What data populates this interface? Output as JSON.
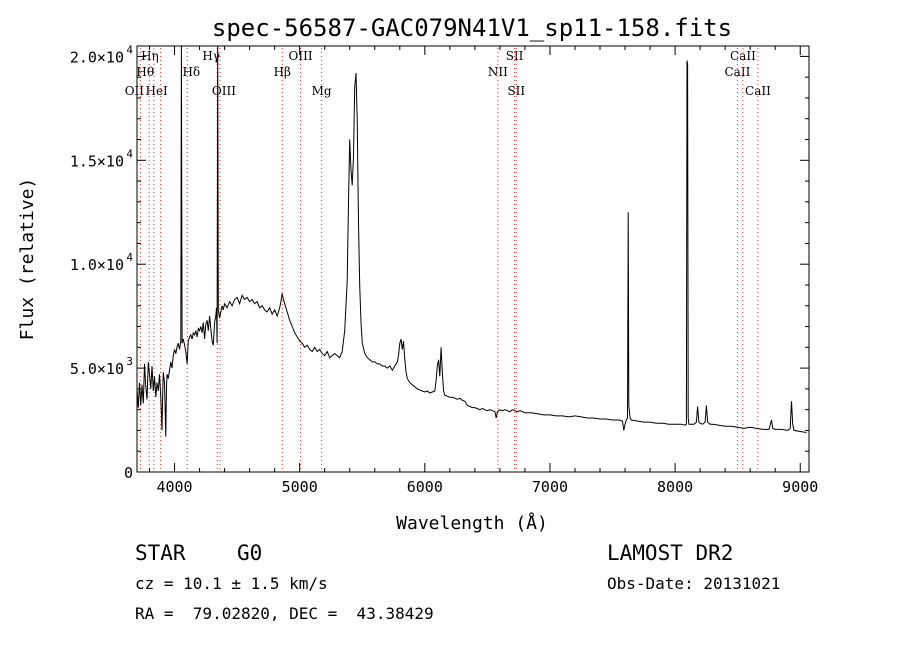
{
  "chart_data": {
    "type": "line",
    "title": "spec-56587-GAC079N41V1_sp11-158.fits",
    "xlabel": "Wavelength (Å)",
    "ylabel": "Flux (relative)",
    "xlim": [
      3700,
      9070
    ],
    "ylim": [
      0,
      20500
    ],
    "xticks": [
      4000,
      5000,
      6000,
      7000,
      8000,
      9000
    ],
    "yticks": [
      {
        "value": 0,
        "mant": "0",
        "exp": ""
      },
      {
        "value": 5000,
        "mant": "5.0×10",
        "exp": "3"
      },
      {
        "value": 10000,
        "mant": "1.0×10",
        "exp": "4"
      },
      {
        "value": 15000,
        "mant": "1.5×10",
        "exp": "4"
      },
      {
        "value": 20000,
        "mant": "2.0×10",
        "exp": "4"
      }
    ],
    "series": [
      {
        "points": [
          [
            3700,
            4000
          ],
          [
            3710,
            3100
          ],
          [
            3720,
            4300
          ],
          [
            3730,
            3200
          ],
          [
            3740,
            4200
          ],
          [
            3750,
            3300
          ],
          [
            3760,
            5200
          ],
          [
            3770,
            4100
          ],
          [
            3780,
            3500
          ],
          [
            3790,
            5300
          ],
          [
            3800,
            4700
          ],
          [
            3810,
            4000
          ],
          [
            3820,
            5100
          ],
          [
            3830,
            3900
          ],
          [
            3840,
            4600
          ],
          [
            3850,
            3600
          ],
          [
            3860,
            4300
          ],
          [
            3870,
            3900
          ],
          [
            3880,
            4700
          ],
          [
            3890,
            3600
          ],
          [
            3900,
            2000
          ],
          [
            3905,
            3800
          ],
          [
            3910,
            4800
          ],
          [
            3920,
            4300
          ],
          [
            3930,
            1700
          ],
          [
            3935,
            3900
          ],
          [
            3940,
            4700
          ],
          [
            3950,
            4500
          ],
          [
            3960,
            4900
          ],
          [
            3970,
            5300
          ],
          [
            3980,
            5000
          ],
          [
            3990,
            5600
          ],
          [
            4000,
            5900
          ],
          [
            4010,
            5700
          ],
          [
            4020,
            6000
          ],
          [
            4030,
            6200
          ],
          [
            4040,
            5900
          ],
          [
            4050,
            6300
          ],
          [
            4055,
            20500
          ],
          [
            4060,
            6200
          ],
          [
            4070,
            6400
          ],
          [
            4080,
            6100
          ],
          [
            4090,
            5800
          ],
          [
            4100,
            5200
          ],
          [
            4110,
            6300
          ],
          [
            4120,
            6500
          ],
          [
            4130,
            6600
          ],
          [
            4140,
            6400
          ],
          [
            4150,
            6700
          ],
          [
            4160,
            6600
          ],
          [
            4170,
            6800
          ],
          [
            4180,
            6500
          ],
          [
            4190,
            6900
          ],
          [
            4200,
            6800
          ],
          [
            4210,
            7000
          ],
          [
            4220,
            6700
          ],
          [
            4230,
            7200
          ],
          [
            4240,
            6400
          ],
          [
            4250,
            7100
          ],
          [
            4260,
            7300
          ],
          [
            4270,
            6800
          ],
          [
            4280,
            7500
          ],
          [
            4290,
            6900
          ],
          [
            4300,
            6300
          ],
          [
            4310,
            6100
          ],
          [
            4320,
            7200
          ],
          [
            4330,
            7500
          ],
          [
            4335,
            7900
          ],
          [
            4340,
            6200
          ],
          [
            4345,
            20500
          ],
          [
            4350,
            7800
          ],
          [
            4360,
            7400
          ],
          [
            4370,
            7700
          ],
          [
            4380,
            8000
          ],
          [
            4390,
            7800
          ],
          [
            4400,
            8100
          ],
          [
            4420,
            7900
          ],
          [
            4440,
            8200
          ],
          [
            4460,
            8000
          ],
          [
            4480,
            8300
          ],
          [
            4500,
            8400
          ],
          [
            4520,
            8100
          ],
          [
            4540,
            8500
          ],
          [
            4560,
            8300
          ],
          [
            4580,
            8400
          ],
          [
            4600,
            8200
          ],
          [
            4620,
            8300
          ],
          [
            4640,
            8100
          ],
          [
            4660,
            8200
          ],
          [
            4680,
            7900
          ],
          [
            4700,
            8000
          ],
          [
            4720,
            7800
          ],
          [
            4740,
            7700
          ],
          [
            4760,
            7900
          ],
          [
            4780,
            7600
          ],
          [
            4800,
            7800
          ],
          [
            4820,
            7500
          ],
          [
            4840,
            7900
          ],
          [
            4850,
            8200
          ],
          [
            4860,
            8600
          ],
          [
            4870,
            8300
          ],
          [
            4880,
            8100
          ],
          [
            4900,
            7700
          ],
          [
            4920,
            7300
          ],
          [
            4940,
            7000
          ],
          [
            4960,
            6700
          ],
          [
            4980,
            6500
          ],
          [
            5000,
            6300
          ],
          [
            5020,
            6200
          ],
          [
            5040,
            6000
          ],
          [
            5060,
            6100
          ],
          [
            5080,
            5900
          ],
          [
            5100,
            5800
          ],
          [
            5120,
            6000
          ],
          [
            5140,
            5800
          ],
          [
            5160,
            5900
          ],
          [
            5180,
            5700
          ],
          [
            5200,
            5600
          ],
          [
            5220,
            5800
          ],
          [
            5240,
            5500
          ],
          [
            5260,
            5600
          ],
          [
            5280,
            5700
          ],
          [
            5300,
            5600
          ],
          [
            5320,
            5500
          ],
          [
            5340,
            5800
          ],
          [
            5360,
            6800
          ],
          [
            5380,
            9200
          ],
          [
            5390,
            13000
          ],
          [
            5400,
            16000
          ],
          [
            5410,
            14500
          ],
          [
            5420,
            13800
          ],
          [
            5430,
            15200
          ],
          [
            5440,
            18500
          ],
          [
            5450,
            19200
          ],
          [
            5460,
            17000
          ],
          [
            5470,
            12000
          ],
          [
            5480,
            9000
          ],
          [
            5490,
            7200
          ],
          [
            5500,
            6200
          ],
          [
            5520,
            5700
          ],
          [
            5540,
            5500
          ],
          [
            5560,
            5400
          ],
          [
            5580,
            5300
          ],
          [
            5600,
            5300
          ],
          [
            5620,
            5200
          ],
          [
            5640,
            5200
          ],
          [
            5660,
            5100
          ],
          [
            5680,
            5100
          ],
          [
            5700,
            5000
          ],
          [
            5720,
            5100
          ],
          [
            5740,
            4900
          ],
          [
            5760,
            5100
          ],
          [
            5780,
            5300
          ],
          [
            5790,
            5600
          ],
          [
            5800,
            6200
          ],
          [
            5810,
            6400
          ],
          [
            5820,
            5900
          ],
          [
            5830,
            6300
          ],
          [
            5840,
            5400
          ],
          [
            5850,
            4800
          ],
          [
            5860,
            4500
          ],
          [
            5870,
            4400
          ],
          [
            5880,
            4300
          ],
          [
            5900,
            4200
          ],
          [
            5920,
            4100
          ],
          [
            5940,
            4000
          ],
          [
            5960,
            3950
          ],
          [
            5980,
            3900
          ],
          [
            6000,
            3850
          ],
          [
            6020,
            3900
          ],
          [
            6040,
            3800
          ],
          [
            6060,
            3850
          ],
          [
            6080,
            3900
          ],
          [
            6090,
            4400
          ],
          [
            6100,
            5100
          ],
          [
            6110,
            5400
          ],
          [
            6120,
            4600
          ],
          [
            6130,
            6000
          ],
          [
            6140,
            4800
          ],
          [
            6150,
            3900
          ],
          [
            6160,
            3700
          ],
          [
            6180,
            3650
          ],
          [
            6200,
            3600
          ],
          [
            6220,
            3600
          ],
          [
            6240,
            3550
          ],
          [
            6260,
            3500
          ],
          [
            6280,
            3550
          ],
          [
            6300,
            3450
          ],
          [
            6320,
            3400
          ],
          [
            6340,
            3200
          ],
          [
            6360,
            3150
          ],
          [
            6380,
            3100
          ],
          [
            6400,
            3100
          ],
          [
            6420,
            3050
          ],
          [
            6440,
            3000
          ],
          [
            6460,
            3050
          ],
          [
            6480,
            3000
          ],
          [
            6500,
            2950
          ],
          [
            6520,
            3000
          ],
          [
            6540,
            2950
          ],
          [
            6560,
            2900
          ],
          [
            6570,
            2600
          ],
          [
            6580,
            2900
          ],
          [
            6600,
            3000
          ],
          [
            6620,
            2950
          ],
          [
            6640,
            3000
          ],
          [
            6660,
            2950
          ],
          [
            6680,
            2900
          ],
          [
            6700,
            3000
          ],
          [
            6720,
            2950
          ],
          [
            6740,
            2900
          ],
          [
            6760,
            2950
          ],
          [
            6780,
            2900
          ],
          [
            6800,
            2850
          ],
          [
            6850,
            2850
          ],
          [
            6900,
            2800
          ],
          [
            6950,
            2750
          ],
          [
            7000,
            2750
          ],
          [
            7050,
            2700
          ],
          [
            7100,
            2700
          ],
          [
            7150,
            2650
          ],
          [
            7200,
            2700
          ],
          [
            7250,
            2650
          ],
          [
            7300,
            2600
          ],
          [
            7350,
            2600
          ],
          [
            7400,
            2550
          ],
          [
            7450,
            2550
          ],
          [
            7500,
            2500
          ],
          [
            7550,
            2500
          ],
          [
            7580,
            2450
          ],
          [
            7590,
            2000
          ],
          [
            7600,
            2300
          ],
          [
            7610,
            2500
          ],
          [
            7620,
            2600
          ],
          [
            7625,
            12500
          ],
          [
            7630,
            3200
          ],
          [
            7640,
            2600
          ],
          [
            7650,
            2500
          ],
          [
            7700,
            2450
          ],
          [
            7750,
            2400
          ],
          [
            7800,
            2400
          ],
          [
            7850,
            2350
          ],
          [
            7900,
            2350
          ],
          [
            7950,
            2300
          ],
          [
            8000,
            2300
          ],
          [
            8050,
            2300
          ],
          [
            8080,
            2250
          ],
          [
            8090,
            2300
          ],
          [
            8095,
            19800
          ],
          [
            8100,
            19600
          ],
          [
            8105,
            2600
          ],
          [
            8110,
            2300
          ],
          [
            8150,
            2300
          ],
          [
            8170,
            2400
          ],
          [
            8180,
            3150
          ],
          [
            8190,
            2400
          ],
          [
            8200,
            2350
          ],
          [
            8220,
            2300
          ],
          [
            8240,
            2400
          ],
          [
            8250,
            3200
          ],
          [
            8260,
            2400
          ],
          [
            8280,
            2300
          ],
          [
            8300,
            2300
          ],
          [
            8350,
            2250
          ],
          [
            8400,
            2200
          ],
          [
            8450,
            2200
          ],
          [
            8500,
            2150
          ],
          [
            8550,
            2100
          ],
          [
            8600,
            2150
          ],
          [
            8650,
            2100
          ],
          [
            8700,
            2050
          ],
          [
            8750,
            2050
          ],
          [
            8770,
            2500
          ],
          [
            8780,
            2100
          ],
          [
            8800,
            2050
          ],
          [
            8850,
            2050
          ],
          [
            8900,
            2000
          ],
          [
            8920,
            2100
          ],
          [
            8930,
            3400
          ],
          [
            8940,
            2300
          ],
          [
            8950,
            2000
          ],
          [
            9000,
            1950
          ],
          [
            9050,
            1900
          ]
        ]
      }
    ],
    "lines": [
      {
        "label": "Hη",
        "x": 3835,
        "row": 0,
        "dx": -4
      },
      {
        "label": "Hθ",
        "x": 3798,
        "row": 1,
        "dx": -4
      },
      {
        "label": "OII",
        "x": 3727,
        "row": 2,
        "dx": -6
      },
      {
        "label": "HeI",
        "x": 3889,
        "row": 2,
        "dx": -4
      },
      {
        "label": "Hδ",
        "x": 4102,
        "row": 1,
        "dx": 4
      },
      {
        "label": "Hγ",
        "x": 4341,
        "row": 0,
        "dx": -6
      },
      {
        "label": "OIII",
        "x": 4363,
        "row": 2,
        "dx": 4
      },
      {
        "label": "Hβ",
        "x": 4861,
        "row": 1,
        "dx": 0
      },
      {
        "label": "OIII",
        "x": 5007,
        "row": 0,
        "dx": 0
      },
      {
        "label": "Mg",
        "x": 5175,
        "row": 2,
        "dx": 0
      },
      {
        "label": "SII",
        "x": 6717,
        "row": 0,
        "dx": 0
      },
      {
        "label": "NII",
        "x": 6584,
        "row": 1,
        "dx": 0
      },
      {
        "label": "SII",
        "x": 6731,
        "row": 2,
        "dx": 0
      },
      {
        "label": "CaII",
        "x": 8498,
        "row": 1,
        "dx": 0
      },
      {
        "label": "CaII",
        "x": 8542,
        "row": 0,
        "dx": 0
      },
      {
        "label": "CaII",
        "x": 8662,
        "row": 2,
        "dx": 0
      }
    ]
  },
  "info": {
    "object": "STAR",
    "subclass": "G0",
    "survey": "LAMOST DR2",
    "cz": "cz = 10.1 ± 1.5 km/s",
    "obs_date": "Obs-Date: 20131021",
    "coords": "RA =  79.02820, DEC =  43.38429"
  }
}
